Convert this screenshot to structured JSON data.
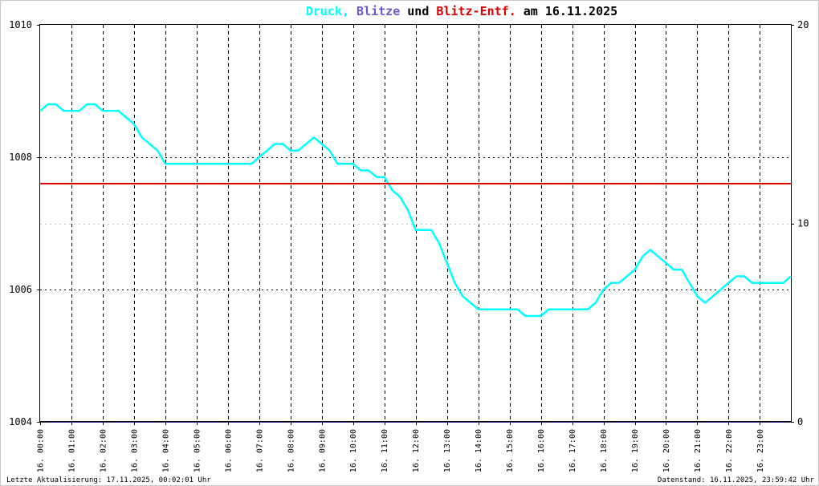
{
  "title_parts": [
    {
      "text": "Druck,",
      "color": "#00ffff"
    },
    {
      "text": " Blitze",
      "color": "#6a5acd"
    },
    {
      "text": " und ",
      "color": "#000000"
    },
    {
      "text": "Blitz-Entf.",
      "color": "#dd0000"
    },
    {
      "text": " am 16.11.2025",
      "color": "#000000"
    }
  ],
  "footer": {
    "left": "Letzte Aktualisierung: 17.11.2025, 00:02:01 Uhr",
    "right": "Datenstand: 16.11.2025, 23:59:42 Uhr"
  },
  "chart_data": {
    "type": "line",
    "title": "Druck, Blitze und Blitz-Entf. am 16.11.2025",
    "y_left": {
      "min": 1004,
      "max": 1010,
      "ticks": [
        "1004",
        "1006",
        "1008",
        "1010"
      ]
    },
    "y_right": {
      "min": 0,
      "max": 20,
      "ticks": [
        "0",
        "10",
        "20"
      ],
      "tick_colors": [
        "#000000",
        "#dd0000",
        "#000000"
      ]
    },
    "x": {
      "unit": "hours",
      "min": 0,
      "max": 23.99,
      "tick_labels": [
        "16. 00:00",
        "16. 01:00",
        "16. 02:00",
        "16. 03:00",
        "16. 04:00",
        "16. 05:00",
        "16. 06:00",
        "16. 07:00",
        "16. 08:00",
        "16. 09:00",
        "16. 10:00",
        "16. 11:00",
        "16. 12:00",
        "16. 13:00",
        "16. 14:00",
        "16. 15:00",
        "16. 16:00",
        "16. 17:00",
        "16. 18:00",
        "16. 19:00",
        "16. 20:00",
        "16. 21:00",
        "16. 22:00",
        "16. 23:00"
      ]
    },
    "grid": true,
    "series": [
      {
        "name": "Druck",
        "color": "#00ffff",
        "axis": "left",
        "x": [
          0,
          0.25,
          0.5,
          0.75,
          1,
          1.25,
          1.5,
          1.75,
          2,
          2.25,
          2.5,
          2.75,
          3,
          3.25,
          3.5,
          3.75,
          4,
          4.25,
          4.5,
          4.75,
          5,
          5.25,
          5.5,
          5.75,
          6,
          6.25,
          6.5,
          6.75,
          7,
          7.25,
          7.5,
          7.75,
          8,
          8.25,
          8.5,
          8.75,
          9,
          9.25,
          9.5,
          9.75,
          10,
          10.25,
          10.5,
          10.75,
          11,
          11.25,
          11.5,
          11.75,
          12,
          12.25,
          12.5,
          12.75,
          13,
          13.25,
          13.5,
          13.75,
          14,
          14.25,
          14.5,
          14.75,
          15,
          15.25,
          15.5,
          15.75,
          16,
          16.25,
          16.5,
          16.75,
          17,
          17.25,
          17.5,
          17.75,
          18,
          18.25,
          18.5,
          18.75,
          19,
          19.25,
          19.5,
          19.75,
          20,
          20.25,
          20.5,
          20.75,
          21,
          21.25,
          21.5,
          21.75,
          22,
          22.25,
          22.5,
          22.75,
          23,
          23.25,
          23.5,
          23.75,
          23.99
        ],
        "y": [
          1008.7,
          1008.8,
          1008.8,
          1008.7,
          1008.7,
          1008.7,
          1008.8,
          1008.8,
          1008.7,
          1008.7,
          1008.7,
          1008.6,
          1008.5,
          1008.3,
          1008.2,
          1008.1,
          1007.9,
          1007.9,
          1007.9,
          1007.9,
          1007.9,
          1007.9,
          1007.9,
          1007.9,
          1007.9,
          1007.9,
          1007.9,
          1007.9,
          1008.0,
          1008.1,
          1008.2,
          1008.2,
          1008.1,
          1008.1,
          1008.2,
          1008.3,
          1008.2,
          1008.1,
          1007.9,
          1007.9,
          1007.9,
          1007.8,
          1007.8,
          1007.7,
          1007.7,
          1007.5,
          1007.4,
          1007.2,
          1006.9,
          1006.9,
          1006.9,
          1006.7,
          1006.4,
          1006.1,
          1005.9,
          1005.8,
          1005.7,
          1005.7,
          1005.7,
          1005.7,
          1005.7,
          1005.7,
          1005.6,
          1005.6,
          1005.6,
          1005.7,
          1005.7,
          1005.7,
          1005.7,
          1005.7,
          1005.7,
          1005.8,
          1006.0,
          1006.1,
          1006.1,
          1006.2,
          1006.3,
          1006.5,
          1006.6,
          1006.5,
          1006.4,
          1006.3,
          1006.3,
          1006.1,
          1005.9,
          1005.8,
          1005.9,
          1006.0,
          1006.1,
          1006.2,
          1006.2,
          1006.1,
          1006.1,
          1006.1,
          1006.1,
          1006.1,
          1006.2
        ]
      },
      {
        "name": "Blitze",
        "color": "#3a2a8a",
        "axis": "right",
        "x": [
          0,
          23.99
        ],
        "y": [
          0,
          0
        ]
      },
      {
        "name": "Blitz-Entf.",
        "color": "#dd0000",
        "axis": "right",
        "x": [
          0,
          23.99
        ],
        "y": [
          12,
          12
        ]
      }
    ]
  }
}
